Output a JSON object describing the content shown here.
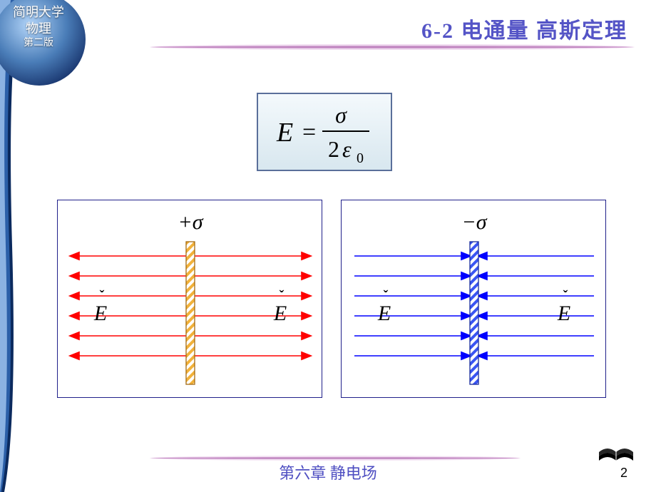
{
  "corner": {
    "line1": "简明大学",
    "line2": "物理",
    "line3": "第二版",
    "globe_light": "#b3d5f9",
    "globe_mid": "#4a7db8",
    "globe_dark": "#1a3770"
  },
  "side_curve": {
    "outer": "#0b2a5e",
    "mid": "#2b5fa8",
    "inner": "#8bb2e2"
  },
  "header": {
    "title": "6-2  电通量    高斯定理",
    "title_color": "#5454c6",
    "underline_core": "#c085c0",
    "underline_glow": "#efd9ef"
  },
  "formula": {
    "display": "E = σ / (2 ε₀)",
    "E": "E",
    "eq": "=",
    "num": "σ",
    "den_base": "ε",
    "den_coef": "2",
    "den_sub": "0",
    "border": "#5a6f9a",
    "bg_top": "#f4f9fc",
    "bg_bottom": "#d8e7ef",
    "text_color": "#000000",
    "fontsize": 34
  },
  "diagrams": {
    "box_border": "#20208a",
    "left": {
      "sigma_label": "+σ",
      "label_E_left": "E",
      "label_E_right": "E",
      "line_color": "#ff0000",
      "arrow_dir_left": "out_left",
      "arrow_dir_right": "out_right",
      "num_lines": 6,
      "plate_hatch_a": "#f2b23a",
      "plate_hatch_b": "#ffffff",
      "plate_border": "#a36a12",
      "E_color": "#000000",
      "vec_caret_color": "#000000"
    },
    "right": {
      "sigma_label": "−σ",
      "label_E_left": "E",
      "label_E_right": "E",
      "line_color": "#0000ff",
      "arrow_dir_left": "in_right",
      "arrow_dir_right": "in_left",
      "num_lines": 6,
      "plate_hatch_a": "#3a55f2",
      "plate_hatch_b": "#ffffff",
      "plate_border": "#162a9a",
      "E_color": "#000000",
      "vec_caret_color": "#000000"
    },
    "line_spacing": 28,
    "line_stroke_width": 1.6,
    "plate_width": 12,
    "plate_height": 200,
    "E_fontsize": 30,
    "caret_char": "ˇ"
  },
  "footer": {
    "text": "第六章  静电场",
    "text_color": "#4f4fc2",
    "line_core": "#c085c0",
    "line_glow": "#f2e0f2",
    "page_number": "2"
  },
  "book_icon": {
    "fill": "#000000"
  }
}
